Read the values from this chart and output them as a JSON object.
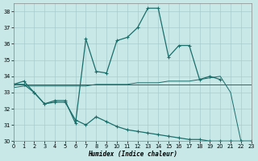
{
  "xlabel": "Humidex (Indice chaleur)",
  "bg_color": "#c8e8e8",
  "grid_color": "#a8cccc",
  "line_color": "#1a6e6a",
  "xlim": [
    0,
    23
  ],
  "ylim": [
    30,
    38.5
  ],
  "yticks": [
    30,
    31,
    32,
    33,
    34,
    35,
    36,
    37,
    38
  ],
  "xticks": [
    0,
    1,
    2,
    3,
    4,
    5,
    6,
    7,
    8,
    9,
    10,
    11,
    12,
    13,
    14,
    15,
    16,
    17,
    18,
    19,
    20,
    21,
    22,
    23
  ],
  "series": [
    {
      "x": [
        0,
        1,
        2,
        3,
        4,
        5,
        6,
        7,
        8,
        9,
        10,
        11,
        12,
        13,
        14,
        15,
        16,
        17,
        18,
        19,
        20
      ],
      "y": [
        33.5,
        33.7,
        33.0,
        32.3,
        32.5,
        32.5,
        31.1,
        36.3,
        34.3,
        34.2,
        36.2,
        36.4,
        37.0,
        38.2,
        38.2,
        35.2,
        35.9,
        35.9,
        33.8,
        34.0,
        33.8
      ],
      "marker": true,
      "lw": 0.9
    },
    {
      "x": [
        0,
        1,
        2,
        3,
        4,
        5,
        6,
        7,
        8,
        9,
        10,
        11,
        12,
        13,
        14,
        15,
        16,
        17,
        18,
        19,
        20,
        21,
        22,
        23
      ],
      "y": [
        33.5,
        33.5,
        33.5,
        33.5,
        33.5,
        33.5,
        33.5,
        33.5,
        33.5,
        33.5,
        33.5,
        33.5,
        33.5,
        33.5,
        33.5,
        33.5,
        33.5,
        33.5,
        33.5,
        33.5,
        33.5,
        33.5,
        33.5,
        33.5
      ],
      "marker": false,
      "lw": 0.7
    },
    {
      "x": [
        0,
        1,
        2,
        3,
        4,
        5,
        6,
        7,
        8,
        9,
        10,
        11,
        12,
        13,
        14,
        15,
        16,
        17,
        18,
        19,
        20,
        21,
        22,
        23
      ],
      "y": [
        33.3,
        33.4,
        33.4,
        33.4,
        33.4,
        33.4,
        33.4,
        33.4,
        33.5,
        33.5,
        33.5,
        33.5,
        33.6,
        33.6,
        33.6,
        33.7,
        33.7,
        33.7,
        33.8,
        33.9,
        34.0,
        33.0,
        30.0,
        30.0
      ],
      "marker": false,
      "lw": 0.7
    },
    {
      "x": [
        0,
        1,
        2,
        3,
        4,
        5,
        6,
        7,
        8,
        9,
        10,
        11,
        12,
        13,
        14,
        15,
        16,
        17,
        18,
        19,
        20,
        21,
        22,
        23
      ],
      "y": [
        33.5,
        33.5,
        33.0,
        32.3,
        32.4,
        32.4,
        31.3,
        31.0,
        31.5,
        31.2,
        30.9,
        30.7,
        30.6,
        30.5,
        30.4,
        30.3,
        30.2,
        30.1,
        30.1,
        30.0,
        30.0,
        30.0,
        30.0,
        30.0
      ],
      "marker": true,
      "lw": 0.9
    }
  ]
}
